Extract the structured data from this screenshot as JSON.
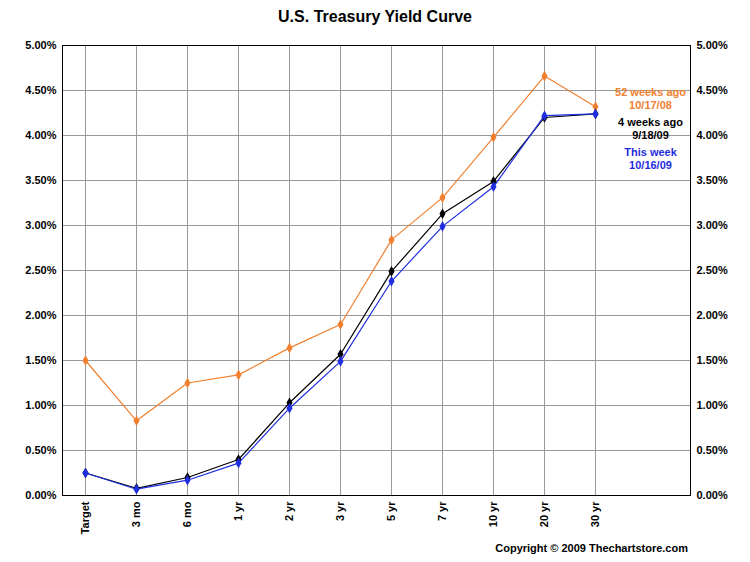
{
  "chart_data": {
    "type": "line",
    "title": "U.S. Treasury Yield Curve",
    "caption": "Copyright © 2009 Thechartstore.com",
    "categories": [
      "Target",
      "3 mo",
      "6 mo",
      "1 yr",
      "2 yr",
      "3 yr",
      "5 yr",
      "7 yr",
      "10 yr",
      "20 yr",
      "30 yr"
    ],
    "series": [
      {
        "name": "52 weeks ago",
        "date": "10/17/08",
        "color": "#f08030",
        "marker": "diamond",
        "values": [
          1.5,
          0.83,
          1.25,
          1.34,
          1.64,
          1.9,
          2.84,
          3.31,
          3.98,
          4.66,
          4.32
        ]
      },
      {
        "name": "4 weeks ago",
        "date": "9/18/09",
        "color": "#000000",
        "marker": "diamond",
        "values": [
          0.25,
          0.08,
          0.2,
          0.4,
          1.03,
          1.57,
          2.49,
          3.13,
          3.49,
          4.2,
          4.24
        ]
      },
      {
        "name": "This week",
        "date": "10/16/09",
        "color": "#1f2ee0",
        "marker": "diamond",
        "values": [
          0.25,
          0.07,
          0.17,
          0.36,
          0.97,
          1.49,
          2.38,
          2.99,
          3.43,
          4.22,
          4.24
        ]
      }
    ],
    "ylim": [
      0,
      5
    ],
    "yticks": [
      {
        "value": 0,
        "label": "0.00%"
      },
      {
        "value": 0.5,
        "label": "0.50%"
      },
      {
        "value": 1,
        "label": "1.00%"
      },
      {
        "value": 1.5,
        "label": "1.50%"
      },
      {
        "value": 2,
        "label": "2.00%"
      },
      {
        "value": 2.5,
        "label": "2.50%"
      },
      {
        "value": 3,
        "label": "3.00%"
      },
      {
        "value": 3.5,
        "label": "3.50%"
      },
      {
        "value": 4,
        "label": "4.00%"
      },
      {
        "value": 4.5,
        "label": "4.50%"
      },
      {
        "value": 5,
        "label": "5.00%"
      }
    ],
    "grid": true,
    "legend": "top-right"
  }
}
